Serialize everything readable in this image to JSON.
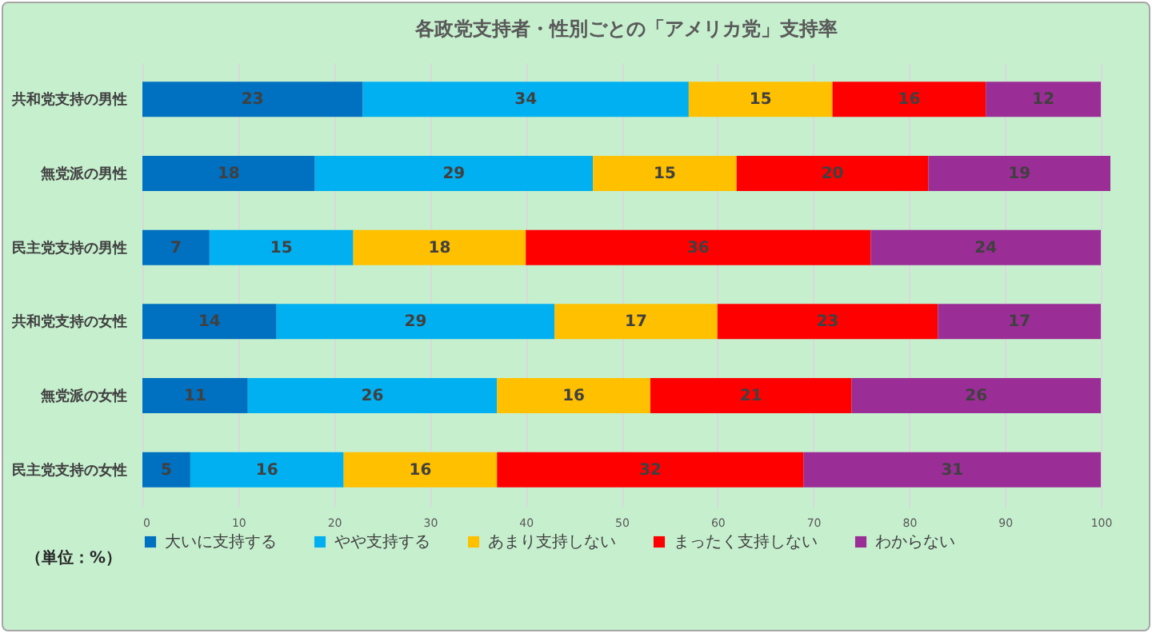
{
  "chart_data": {
    "type": "bar",
    "orientation": "horizontal",
    "stacked": true,
    "title": "各政党支持者・性別ごとの「アメリカ党」支持率",
    "categories": [
      "共和党支持の男性",
      "無党派の男性",
      "民主党支持の男性",
      "共和党支持の女性",
      "無党派の女性",
      "民主党支持の女性"
    ],
    "series": [
      {
        "name": "大いに支持する",
        "color": "#0070c0",
        "values": [
          23,
          18,
          7,
          14,
          11,
          5
        ]
      },
      {
        "name": "やや支持する",
        "color": "#00b0f0",
        "values": [
          34,
          29,
          15,
          29,
          26,
          16
        ]
      },
      {
        "name": "あまり支持しない",
        "color": "#ffc000",
        "values": [
          15,
          15,
          18,
          17,
          16,
          16
        ]
      },
      {
        "name": "まったく支持しない",
        "color": "#ff0000",
        "values": [
          16,
          20,
          36,
          23,
          21,
          32
        ]
      },
      {
        "name": "わからない",
        "color": "#9b2d96",
        "values": [
          12,
          19,
          24,
          17,
          26,
          31
        ]
      }
    ],
    "xlim": [
      0,
      101
    ],
    "xticks": [
      0,
      10,
      20,
      30,
      40,
      50,
      60,
      70,
      80,
      90,
      100
    ],
    "grid": "x",
    "legend": "bottom",
    "data_labels": true,
    "annotations": [
      "（単位：%）"
    ]
  }
}
